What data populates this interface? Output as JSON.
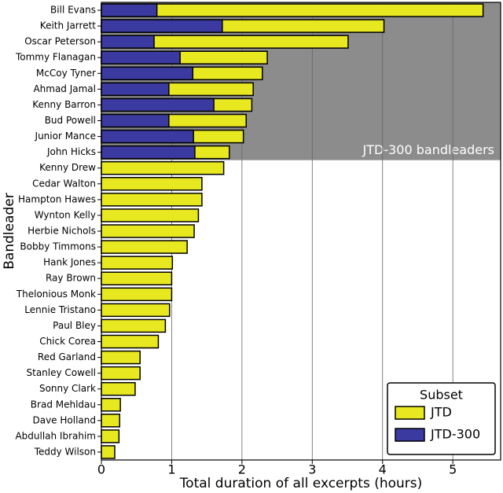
{
  "chart_data": {
    "type": "barh",
    "categories": [
      "Bill Evans",
      "Keith Jarrett",
      "Oscar Peterson",
      "Tommy Flanagan",
      "McCoy Tyner",
      "Ahmad Jamal",
      "Kenny Barron",
      "Bud Powell",
      "Junior Mance",
      "John Hicks",
      "Kenny Drew",
      "Cedar Walton",
      "Hampton Hawes",
      "Wynton Kelly",
      "Herbie Nichols",
      "Bobby Timmons",
      "Hank Jones",
      "Ray Brown",
      "Thelonious Monk",
      "Lennie Tristano",
      "Paul Bley",
      "Chick Corea",
      "Red Garland",
      "Stanley Cowell",
      "Sonny Clark",
      "Brad Mehldau",
      "Dave Holland",
      "Abdullah Ibrahim",
      "Teddy Wilson"
    ],
    "series": [
      {
        "name": "JTD",
        "color": "#e8e820",
        "values": [
          5.43,
          4.02,
          3.51,
          2.36,
          2.29,
          2.16,
          2.14,
          2.06,
          2.02,
          1.82,
          1.74,
          1.43,
          1.43,
          1.38,
          1.32,
          1.22,
          1.01,
          1.0,
          1.0,
          0.97,
          0.91,
          0.81,
          0.55,
          0.55,
          0.48,
          0.27,
          0.26,
          0.25,
          0.19
        ]
      },
      {
        "name": "JTD-300",
        "color": "#3a3aa0",
        "values": [
          0.79,
          1.72,
          0.75,
          1.12,
          1.3,
          0.96,
          1.6,
          0.96,
          1.31,
          1.33,
          null,
          null,
          null,
          null,
          null,
          null,
          null,
          null,
          null,
          null,
          null,
          null,
          null,
          null,
          null,
          null,
          null,
          null,
          null
        ]
      }
    ],
    "xlabel": "Total duration of all excerpts (hours)",
    "ylabel": "Bandleader",
    "xlim": [
      0,
      5.68
    ],
    "xticks": [
      0,
      1,
      2,
      3,
      4,
      5
    ],
    "grid": true,
    "annotation": "JTD-300 bandleaders",
    "legend": "lower right",
    "legend_title": "Subset"
  }
}
